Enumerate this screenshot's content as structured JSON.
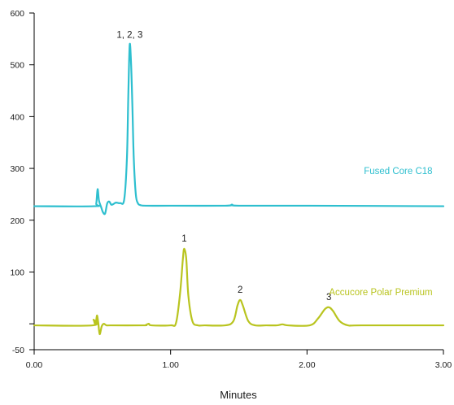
{
  "chart_data": {
    "type": "line",
    "title": "",
    "xlabel": "Minutes",
    "ylabel": "",
    "xlim": [
      0,
      3
    ],
    "ylim": [
      -50,
      600
    ],
    "x_ticks": [
      {
        "value": 0,
        "label": "0.00"
      },
      {
        "value": 1,
        "label": "1.00"
      },
      {
        "value": 2,
        "label": "2.00"
      },
      {
        "value": 3,
        "label": "3.00"
      }
    ],
    "y_ticks": [
      {
        "value": -50,
        "label": "-50"
      },
      {
        "value": 100,
        "label": "100"
      },
      {
        "value": 200,
        "label": "200"
      },
      {
        "value": 300,
        "label": "300"
      },
      {
        "value": 400,
        "label": "400"
      },
      {
        "value": 500,
        "label": "500"
      },
      {
        "value": 600,
        "label": "600"
      }
    ],
    "grid": false,
    "colors": {
      "axis": "#000000",
      "fused_core": "#2ebfcf",
      "accucore": "#b9c41f"
    },
    "series": [
      {
        "name": "Fused Core C18",
        "color": "#2ebfcf",
        "x": [
          0.0,
          0.44,
          0.455,
          0.465,
          0.475,
          0.49,
          0.505,
          0.52,
          0.535,
          0.55,
          0.565,
          0.58,
          0.6,
          0.63,
          0.66,
          0.68,
          0.69,
          0.7,
          0.71,
          0.72,
          0.73,
          0.745,
          0.76,
          0.78,
          0.82,
          1.0,
          1.4,
          1.45,
          1.5,
          2.0,
          3.0
        ],
        "y": [
          227,
          227,
          232,
          260,
          238,
          226,
          215,
          213,
          232,
          236,
          230,
          231,
          234,
          233,
          240,
          320,
          440,
          538,
          505,
          420,
          320,
          250,
          233,
          229,
          228,
          228,
          228,
          230,
          228,
          228,
          227
        ],
        "peak_labels": [
          {
            "x": 0.7,
            "y": 538,
            "text": "1, 2, 3"
          }
        ],
        "label": {
          "text": "Fused Core C18",
          "x": 2.92,
          "y": 289
        }
      },
      {
        "name": "Accucore Polar Premium",
        "color": "#b9c41f",
        "x": [
          0.0,
          0.43,
          0.435,
          0.45,
          0.46,
          0.47,
          0.48,
          0.495,
          0.51,
          0.53,
          0.56,
          0.8,
          0.82,
          0.84,
          0.86,
          1.0,
          1.04,
          1.07,
          1.09,
          1.1,
          1.115,
          1.13,
          1.16,
          1.2,
          1.25,
          1.4,
          1.46,
          1.49,
          1.51,
          1.53,
          1.57,
          1.62,
          1.7,
          1.78,
          1.82,
          1.86,
          2.02,
          2.08,
          2.13,
          2.16,
          2.19,
          2.24,
          2.3,
          2.4,
          3.0
        ],
        "y": [
          -3,
          -3,
          8,
          -2,
          16,
          2,
          -20,
          -5,
          0,
          -3,
          -3,
          -3,
          -2,
          0,
          -3,
          -3,
          2,
          60,
          125,
          145,
          125,
          55,
          5,
          -3,
          -3,
          -3,
          5,
          35,
          46,
          35,
          5,
          -3,
          -3,
          -3,
          -1,
          -3,
          -3,
          10,
          28,
          32,
          25,
          5,
          -3,
          -3,
          -3
        ],
        "peak_labels": [
          {
            "x": 1.1,
            "y": 145,
            "text": "1"
          },
          {
            "x": 1.51,
            "y": 46,
            "text": "2"
          },
          {
            "x": 2.16,
            "y": 32,
            "text": "3"
          }
        ],
        "label": {
          "text": "Accucore Polar Premium",
          "x": 2.92,
          "y": 55
        }
      }
    ]
  }
}
